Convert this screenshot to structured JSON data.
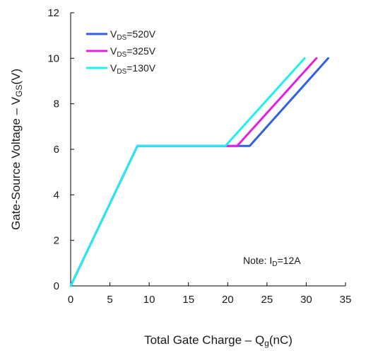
{
  "chart_data": {
    "type": "line",
    "title": "",
    "xlabel": "Total Gate Charge – Qg(nC)",
    "xlabel_parts": [
      "Total Gate Charge – Q",
      "g",
      "(nC)"
    ],
    "ylabel": "Gate-Source Voltage – VGS(V)",
    "ylabel_parts": [
      "Gate-Source Voltage – V",
      "GS",
      "(V)"
    ],
    "xlim": [
      0,
      35
    ],
    "ylim": [
      0,
      12
    ],
    "xticks": [
      0,
      5,
      10,
      15,
      20,
      25,
      30,
      35
    ],
    "yticks": [
      0,
      2,
      4,
      6,
      8,
      10,
      12
    ],
    "grid": false,
    "legend_position": "top-left",
    "annotation": {
      "parts": [
        "Note: I",
        "D",
        "=12A"
      ],
      "text": "Note: ID=12A"
    },
    "series": [
      {
        "name": "VDS=520V",
        "label_parts": [
          "V",
          "DS",
          "=520V"
        ],
        "color": "#3060e0",
        "x": [
          0,
          8.5,
          22.8,
          32.8
        ],
        "y": [
          0,
          6.15,
          6.15,
          10.0
        ]
      },
      {
        "name": "VDS=325V",
        "label_parts": [
          "V",
          "DS",
          "=325V"
        ],
        "color": "#e020e0",
        "x": [
          0,
          8.5,
          21.2,
          31.3
        ],
        "y": [
          0,
          6.15,
          6.15,
          10.0
        ]
      },
      {
        "name": "VDS=130V",
        "label_parts": [
          "V",
          "DS",
          "=130V"
        ],
        "color": "#20eeee",
        "x": [
          0,
          8.5,
          19.7,
          29.8
        ],
        "y": [
          0,
          6.15,
          6.15,
          10.0
        ]
      }
    ]
  }
}
